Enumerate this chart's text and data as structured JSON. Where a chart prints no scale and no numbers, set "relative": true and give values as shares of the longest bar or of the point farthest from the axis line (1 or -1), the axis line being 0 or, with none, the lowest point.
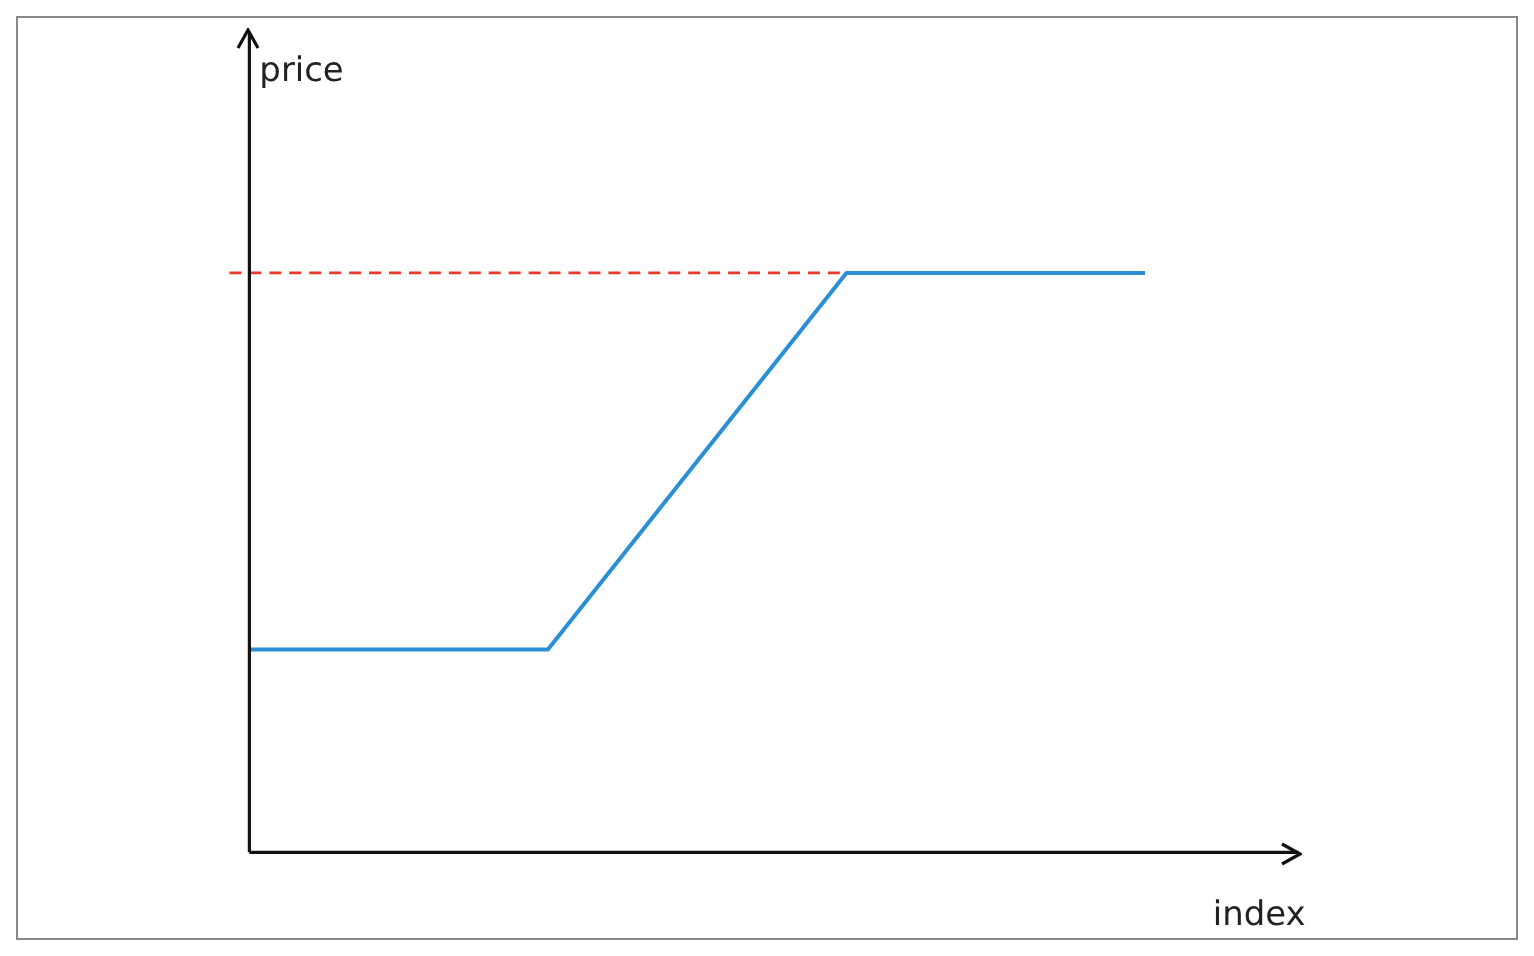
{
  "chart_data": {
    "type": "line",
    "relative": true,
    "xlabel": "index",
    "annotations": [
      "price"
    ],
    "categories": [
      null,
      null,
      null,
      null
    ],
    "series": [
      {
        "color": "#2b8fd6",
        "values": [
          0.35,
          0.35,
          1,
          1
        ]
      }
    ],
    "ref_lines": [
      {
        "axis": "y",
        "value": 1,
        "color": "#e8392a",
        "line_style": "dashed"
      }
    ],
    "marker": "none",
    "line_style": "solid"
  }
}
